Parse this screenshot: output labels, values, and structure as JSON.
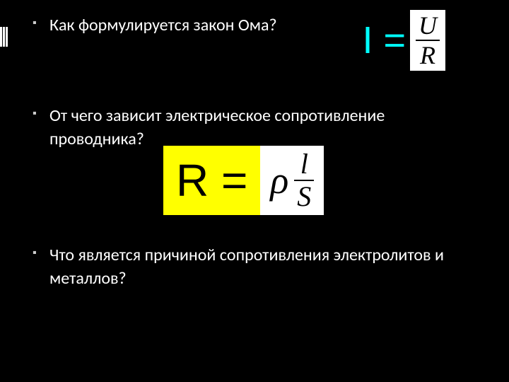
{
  "questions": {
    "q1": "Как формулируется закон Ома?",
    "q2": "От чего зависит электрическое сопротивление проводника?",
    "q3": "Что является причиной сопротивления электролитов и металлов?"
  },
  "formulas": {
    "ohm": {
      "lhs": "I =",
      "numerator": "U",
      "denominator": "R",
      "lhs_color": "#00ffff",
      "frac_bg": "#ffffff",
      "frac_text_color": "#000000"
    },
    "resistance": {
      "lhs": "R =",
      "lhs_bg": "#ffff00",
      "lhs_color": "#000000",
      "rho": "ρ",
      "numerator": "l",
      "denominator": "S",
      "rhs_bg": "#ffffff",
      "rhs_color": "#000000"
    }
  },
  "colors": {
    "background": "#000000",
    "text": "#ffffff",
    "bullet": "#cccccc"
  }
}
